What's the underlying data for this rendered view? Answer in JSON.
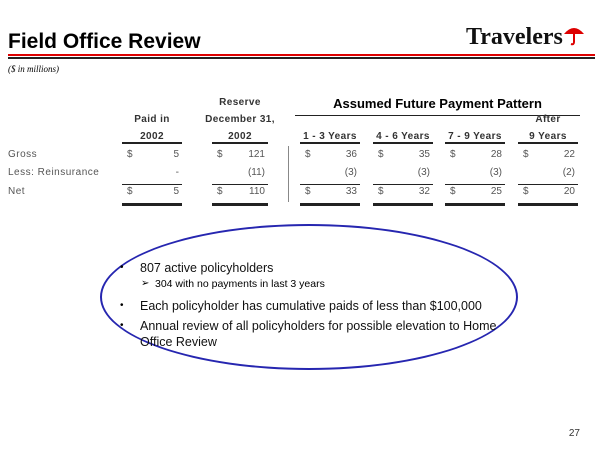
{
  "header": {
    "title": "Field Office Review",
    "units": "($ in millions)",
    "logo_text": "Travelers",
    "brand_color": "#d00000"
  },
  "table": {
    "group_header": "Assumed Future Payment Pattern",
    "columns": [
      {
        "head1": "",
        "head2": "Paid in",
        "head3": "2002"
      },
      {
        "head1": "Reserve",
        "head2": "December 31,",
        "head3": "2002"
      },
      {
        "head1": "",
        "head2": "",
        "head3": "1 - 3 Years"
      },
      {
        "head1": "",
        "head2": "",
        "head3": "4 - 6 Years"
      },
      {
        "head1": "",
        "head2": "",
        "head3": "7 - 9 Years"
      },
      {
        "head1": "",
        "head2": "After",
        "head3": "9 Years"
      }
    ],
    "rows": [
      {
        "label": "Gross",
        "values": [
          "5",
          "121",
          "36",
          "35",
          "28",
          "22"
        ],
        "dollar": true
      },
      {
        "label": "Less: Reinsurance",
        "values": [
          "-",
          "(11)",
          "(3)",
          "(3)",
          "(3)",
          "(2)"
        ],
        "dollar": false
      },
      {
        "label": "Net",
        "values": [
          "5",
          "110",
          "33",
          "32",
          "25",
          "20"
        ],
        "dollar": true
      }
    ],
    "currency_symbol": "$"
  },
  "bullets": [
    {
      "text": "807 active policyholders",
      "sub": [
        "304 with no payments in last 3 years"
      ]
    },
    {
      "text": "Each policyholder has cumulative paids of less than $100,000",
      "sub": []
    },
    {
      "text": "Annual review of all policyholders for possible elevation to Home Office Review",
      "sub": []
    }
  ],
  "bullet_glyph": "•",
  "sub_bullet_glyph": "➢",
  "oval_color": "#2626b0",
  "page_number": "27"
}
